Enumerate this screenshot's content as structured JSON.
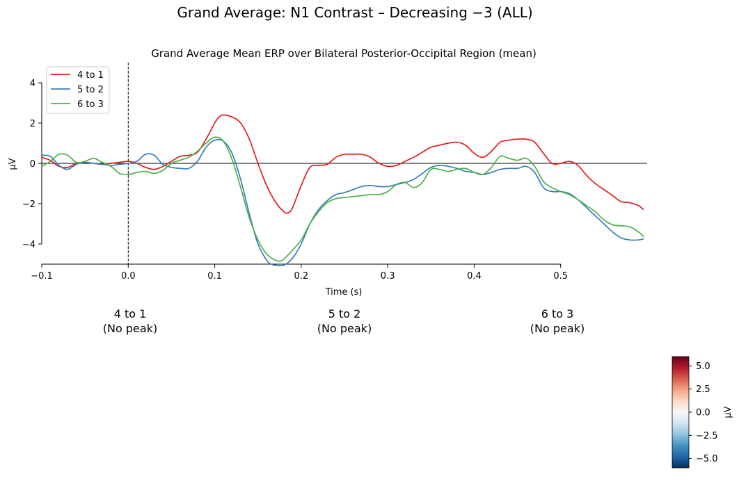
{
  "figure": {
    "suptitle": "Grand Average: N1 Contrast – Decreasing −3 (ALL)"
  },
  "chart_data": {
    "type": "line",
    "title": "Grand Average Mean ERP over Bilateral Posterior-Occipital Region (mean)",
    "xlabel": "Time (s)",
    "ylabel": "µV",
    "xlim": [
      -0.1,
      0.6
    ],
    "ylim": [
      -5,
      5
    ],
    "xticks": [
      -0.1,
      0.0,
      0.1,
      0.2,
      0.3,
      0.4,
      0.5
    ],
    "xtick_labels": [
      "−0.1",
      "0.0",
      "0.1",
      "0.2",
      "0.3",
      "0.4",
      "0.5"
    ],
    "yticks": [
      -4,
      -2,
      0,
      2,
      4
    ],
    "ytick_labels": [
      "−4",
      "−2",
      "0",
      "2",
      "4"
    ],
    "grid": false,
    "legend_position": "upper-left",
    "zero_line": true,
    "stimulus_onset_line": 0.0,
    "series": [
      {
        "name": "4 to 1",
        "color": "#e41a1c",
        "x": [
          -0.1,
          -0.09,
          -0.08,
          -0.07,
          -0.06,
          -0.05,
          -0.04,
          -0.03,
          -0.02,
          -0.01,
          0.0,
          0.01,
          0.02,
          0.03,
          0.04,
          0.05,
          0.06,
          0.07,
          0.08,
          0.09,
          0.1,
          0.105,
          0.11,
          0.12,
          0.13,
          0.14,
          0.15,
          0.16,
          0.17,
          0.18,
          0.185,
          0.19,
          0.2,
          0.21,
          0.22,
          0.23,
          0.24,
          0.25,
          0.26,
          0.27,
          0.28,
          0.29,
          0.3,
          0.31,
          0.32,
          0.33,
          0.34,
          0.35,
          0.36,
          0.37,
          0.38,
          0.39,
          0.4,
          0.41,
          0.42,
          0.43,
          0.44,
          0.45,
          0.46,
          0.47,
          0.48,
          0.49,
          0.5,
          0.51,
          0.52,
          0.53,
          0.54,
          0.55,
          0.56,
          0.57,
          0.58,
          0.59,
          0.596
        ],
        "y": [
          0.3,
          0.15,
          -0.15,
          -0.2,
          0.0,
          0.05,
          0.0,
          -0.05,
          0.0,
          0.05,
          0.1,
          0.0,
          -0.2,
          -0.3,
          -0.15,
          0.1,
          0.35,
          0.4,
          0.55,
          1.2,
          2.0,
          2.3,
          2.4,
          2.3,
          2.0,
          1.2,
          0.0,
          -1.1,
          -1.9,
          -2.4,
          -2.45,
          -2.2,
          -1.1,
          -0.2,
          -0.1,
          -0.05,
          0.3,
          0.45,
          0.45,
          0.45,
          0.3,
          0.0,
          -0.15,
          -0.1,
          0.1,
          0.3,
          0.55,
          0.8,
          0.9,
          1.0,
          1.05,
          0.9,
          0.5,
          0.3,
          0.6,
          1.05,
          1.15,
          1.2,
          1.2,
          1.05,
          0.5,
          0.0,
          0.0,
          0.1,
          -0.1,
          -0.6,
          -1.0,
          -1.3,
          -1.6,
          -1.9,
          -1.95,
          -2.1,
          -2.3
        ]
      },
      {
        "name": "5 to 2",
        "color": "#377eb8",
        "x": [
          -0.1,
          -0.09,
          -0.08,
          -0.07,
          -0.06,
          -0.05,
          -0.04,
          -0.03,
          -0.02,
          -0.01,
          0.0,
          0.01,
          0.02,
          0.03,
          0.04,
          0.05,
          0.06,
          0.07,
          0.08,
          0.09,
          0.1,
          0.11,
          0.12,
          0.13,
          0.14,
          0.15,
          0.16,
          0.165,
          0.17,
          0.18,
          0.19,
          0.2,
          0.21,
          0.22,
          0.23,
          0.24,
          0.25,
          0.26,
          0.27,
          0.28,
          0.29,
          0.3,
          0.31,
          0.32,
          0.33,
          0.34,
          0.35,
          0.36,
          0.37,
          0.38,
          0.39,
          0.4,
          0.41,
          0.42,
          0.43,
          0.44,
          0.45,
          0.46,
          0.47,
          0.48,
          0.49,
          0.5,
          0.51,
          0.52,
          0.53,
          0.54,
          0.55,
          0.56,
          0.57,
          0.58,
          0.59,
          0.596
        ],
        "y": [
          0.4,
          0.35,
          -0.1,
          -0.3,
          -0.05,
          0.05,
          0.0,
          -0.05,
          -0.1,
          -0.05,
          0.0,
          0.1,
          0.45,
          0.4,
          -0.05,
          -0.2,
          -0.25,
          -0.25,
          0.1,
          0.8,
          1.15,
          1.1,
          0.5,
          -0.8,
          -2.5,
          -4.0,
          -4.8,
          -5.0,
          -5.05,
          -5.05,
          -4.7,
          -4.0,
          -3.0,
          -2.3,
          -1.85,
          -1.55,
          -1.45,
          -1.3,
          -1.15,
          -1.1,
          -1.15,
          -1.15,
          -1.05,
          -0.95,
          -0.8,
          -0.5,
          -0.2,
          -0.1,
          -0.15,
          -0.25,
          -0.4,
          -0.45,
          -0.55,
          -0.45,
          -0.3,
          -0.25,
          -0.25,
          -0.15,
          -0.45,
          -1.2,
          -1.4,
          -1.4,
          -1.5,
          -1.8,
          -2.2,
          -2.6,
          -3.0,
          -3.4,
          -3.7,
          -3.8,
          -3.8,
          -3.75
        ]
      },
      {
        "name": "6 to 3",
        "color": "#4daf4a",
        "x": [
          -0.1,
          -0.09,
          -0.08,
          -0.07,
          -0.06,
          -0.05,
          -0.04,
          -0.03,
          -0.02,
          -0.01,
          0.0,
          0.01,
          0.02,
          0.03,
          0.04,
          0.05,
          0.06,
          0.07,
          0.08,
          0.09,
          0.1,
          0.11,
          0.12,
          0.13,
          0.14,
          0.15,
          0.16,
          0.17,
          0.175,
          0.18,
          0.19,
          0.2,
          0.21,
          0.22,
          0.23,
          0.24,
          0.25,
          0.26,
          0.27,
          0.28,
          0.29,
          0.3,
          0.31,
          0.32,
          0.33,
          0.34,
          0.35,
          0.36,
          0.37,
          0.38,
          0.39,
          0.4,
          0.41,
          0.42,
          0.43,
          0.44,
          0.45,
          0.46,
          0.47,
          0.48,
          0.49,
          0.5,
          0.51,
          0.52,
          0.53,
          0.54,
          0.55,
          0.56,
          0.57,
          0.58,
          0.59,
          0.596
        ],
        "y": [
          -0.15,
          0.1,
          0.45,
          0.4,
          0.05,
          0.1,
          0.25,
          0.05,
          -0.15,
          -0.5,
          -0.55,
          -0.45,
          -0.4,
          -0.5,
          -0.35,
          0.0,
          0.15,
          0.3,
          0.6,
          1.0,
          1.3,
          1.1,
          0.2,
          -1.2,
          -2.7,
          -3.8,
          -4.5,
          -4.8,
          -4.85,
          -4.75,
          -4.3,
          -3.8,
          -3.0,
          -2.4,
          -1.95,
          -1.75,
          -1.7,
          -1.65,
          -1.6,
          -1.55,
          -1.55,
          -1.4,
          -1.05,
          -0.95,
          -1.2,
          -0.95,
          -0.3,
          -0.3,
          -0.4,
          -0.3,
          -0.25,
          -0.45,
          -0.55,
          -0.2,
          0.35,
          0.25,
          0.15,
          0.25,
          -0.15,
          -0.9,
          -1.2,
          -1.4,
          -1.55,
          -1.8,
          -2.1,
          -2.4,
          -2.8,
          -3.05,
          -3.1,
          -3.15,
          -3.4,
          -3.65
        ]
      }
    ],
    "peak_labels": [
      {
        "condition": "4 to 1",
        "status": "(No peak)"
      },
      {
        "condition": "5 to 2",
        "status": "(No peak)"
      },
      {
        "condition": "6 to 3",
        "status": "(No peak)"
      }
    ],
    "colorbar": {
      "label": "µV",
      "colormap": "RdBu_r",
      "range": [
        -6,
        6
      ],
      "ticks": [
        5.0,
        2.5,
        0.0,
        -2.5,
        -5.0
      ],
      "tick_labels": [
        "5.0",
        "2.5",
        "0.0",
        "−2.5",
        "−5.0"
      ]
    }
  }
}
